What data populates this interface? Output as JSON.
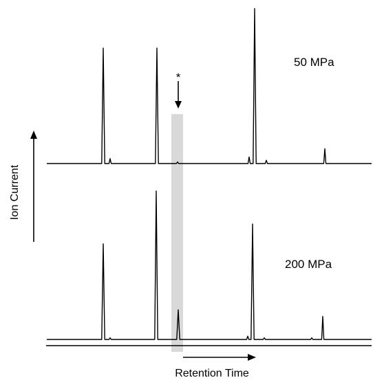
{
  "chart_data": {
    "type": "line",
    "title": "",
    "xlabel": "Retention Time",
    "ylabel": "Ion Current",
    "annotation_marker": "*",
    "highlight_band_color": "#d9d9d9",
    "line_color": "#000000",
    "series": [
      {
        "name": "50 MPa",
        "peaks": [
          {
            "rt": 0.15,
            "height": 0.7
          },
          {
            "rt": 0.16,
            "height": 0.03
          },
          {
            "rt": 0.228,
            "height": 0.7
          },
          {
            "rt": 0.258,
            "height": 0.01
          },
          {
            "rt": 0.362,
            "height": 0.04
          },
          {
            "rt": 0.37,
            "height": 0.94
          },
          {
            "rt": 0.387,
            "height": 0.02
          },
          {
            "rt": 0.472,
            "height": 0.09
          }
        ]
      },
      {
        "name": "200 MPa",
        "peaks": [
          {
            "rt": 0.15,
            "height": 0.58
          },
          {
            "rt": 0.16,
            "height": 0.01
          },
          {
            "rt": 0.227,
            "height": 0.9
          },
          {
            "rt": 0.259,
            "height": 0.18
          },
          {
            "rt": 0.36,
            "height": 0.02
          },
          {
            "rt": 0.367,
            "height": 0.7
          },
          {
            "rt": 0.384,
            "height": 0.01
          },
          {
            "rt": 0.453,
            "height": 0.01
          },
          {
            "rt": 0.469,
            "height": 0.14
          }
        ]
      }
    ],
    "highlight_rt_range": [
      0.249,
      0.266
    ],
    "marked_rt": 0.259
  }
}
